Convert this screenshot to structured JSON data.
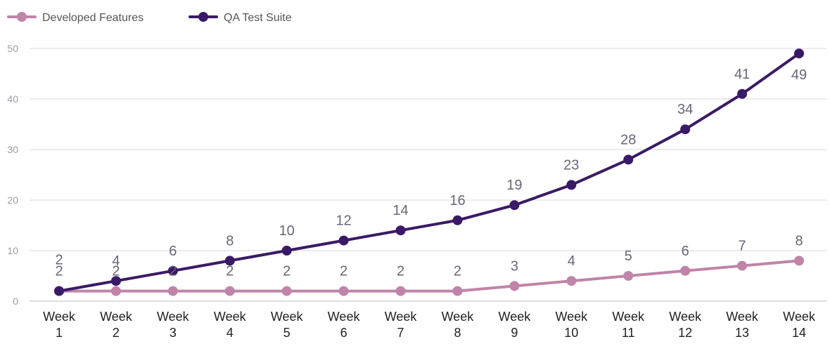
{
  "chart_data": {
    "type": "line",
    "title": "",
    "xlabel": "",
    "ylabel": "",
    "categories": [
      [
        "Week",
        "1"
      ],
      [
        "Week",
        "2"
      ],
      [
        "Week",
        "3"
      ],
      [
        "Week",
        "4"
      ],
      [
        "Week",
        "5"
      ],
      [
        "Week",
        "6"
      ],
      [
        "Week",
        "7"
      ],
      [
        "Week",
        "8"
      ],
      [
        "Week",
        "9"
      ],
      [
        "Week",
        "10"
      ],
      [
        "Week",
        "11"
      ],
      [
        "Week",
        "12"
      ],
      [
        "Week",
        "13"
      ],
      [
        "Week",
        "14"
      ]
    ],
    "ylim": [
      0,
      50
    ],
    "yticks": [
      0,
      10,
      20,
      30,
      40,
      50
    ],
    "grid": true,
    "legend_position": "top-left",
    "series": [
      {
        "name": "Developed Features",
        "color": "#c084a8",
        "values": [
          2,
          2,
          2,
          2,
          2,
          2,
          2,
          2,
          3,
          4,
          5,
          6,
          7,
          8
        ]
      },
      {
        "name": "QA Test Suite",
        "color": "#3a1a66",
        "values": [
          2,
          4,
          6,
          8,
          10,
          12,
          14,
          16,
          19,
          23,
          28,
          34,
          41,
          49
        ]
      }
    ]
  }
}
